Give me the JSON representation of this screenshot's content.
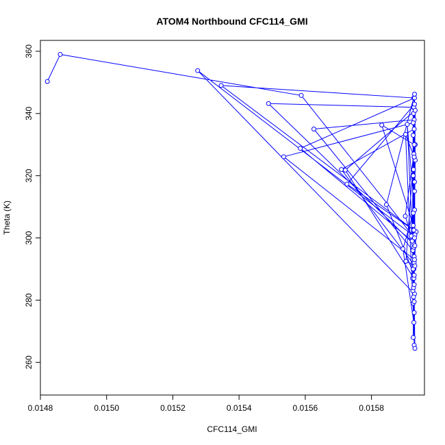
{
  "chart_data": {
    "type": "line",
    "title": "ATOM4 Northbound CFC114_GMI",
    "xlabel": "CFC114_GMI",
    "ylabel": "Theta (K)",
    "xlim": [
      0.0148,
      0.01596
    ],
    "ylim": [
      249.5,
      363.5
    ],
    "x_ticks": [
      "0.0148",
      "0.0150",
      "0.0152",
      "0.0154",
      "0.0156",
      "0.0158"
    ],
    "y_ticks": [
      "260",
      "280",
      "300",
      "320",
      "340",
      "360"
    ],
    "grid": false,
    "line_color": "#0000ff",
    "marker": "open-circle",
    "series": [
      {
        "x": [
          0.014821,
          0.01486,
          0.015588,
          0.015924,
          0.015926,
          0.01593,
          0.015275,
          0.015929,
          0.015924,
          0.015927,
          0.015928,
          0.015928,
          0.015346,
          0.015935,
          0.015925,
          0.015929,
          0.015929,
          0.015928,
          0.015489,
          0.015928,
          0.015902,
          0.015932,
          0.015926,
          0.015929,
          0.015626,
          0.015925,
          0.015929,
          0.015926,
          0.015929,
          0.01593,
          0.015585,
          0.015923,
          0.01592,
          0.01593,
          0.015929,
          0.015926,
          0.015535,
          0.01593,
          0.015927,
          0.015932,
          0.015926,
          0.015929,
          0.015709,
          0.015931,
          0.015904,
          0.015928,
          0.015927,
          0.015932,
          0.015721,
          0.015928,
          0.015926,
          0.01593,
          0.015928,
          0.015929,
          0.015831,
          0.015926,
          0.015931,
          0.015927,
          0.015929,
          0.01593,
          0.015726,
          0.015928,
          0.015929,
          0.015926,
          0.015931,
          0.01593,
          0.015845,
          0.015929,
          0.015908,
          0.01593,
          0.015927,
          0.015929,
          0.015903,
          0.015931,
          0.015926,
          0.015895,
          0.015928,
          0.01593
        ],
        "y": [
          350.3,
          359.0,
          345.8,
          300.8,
          342.0,
          282.0,
          353.8,
          300.5,
          287.0,
          340.0,
          290.0,
          345.0,
          349.0,
          302.0,
          283.0,
          326.0,
          294.0,
          342.0,
          343.2,
          298.0,
          307.0,
          330.0,
          279.0,
          338.0,
          335.0,
          296.0,
          265.5,
          320.0,
          292.0,
          345.0,
          328.8,
          299.0,
          300.6,
          318.0,
          276.0,
          337.0,
          326.1,
          293.0,
          284.0,
          325.0,
          290.0,
          335.0,
          322.0,
          291.0,
          292.5,
          327.0,
          288.0,
          341.0,
          321.8,
          287.0,
          268.0,
          315.0,
          297.0,
          330.0,
          336.3,
          304.0,
          301.0,
          322.0,
          279.5,
          343.0,
          317.3,
          302.5,
          285.0,
          333.0,
          297.5,
          346.2,
          310.7,
          288.0,
          336.5,
          309.0,
          281.0,
          326.0,
          333.3,
          264.5,
          308.0,
          296.5,
          272.8,
          300.0
        ]
      }
    ]
  }
}
